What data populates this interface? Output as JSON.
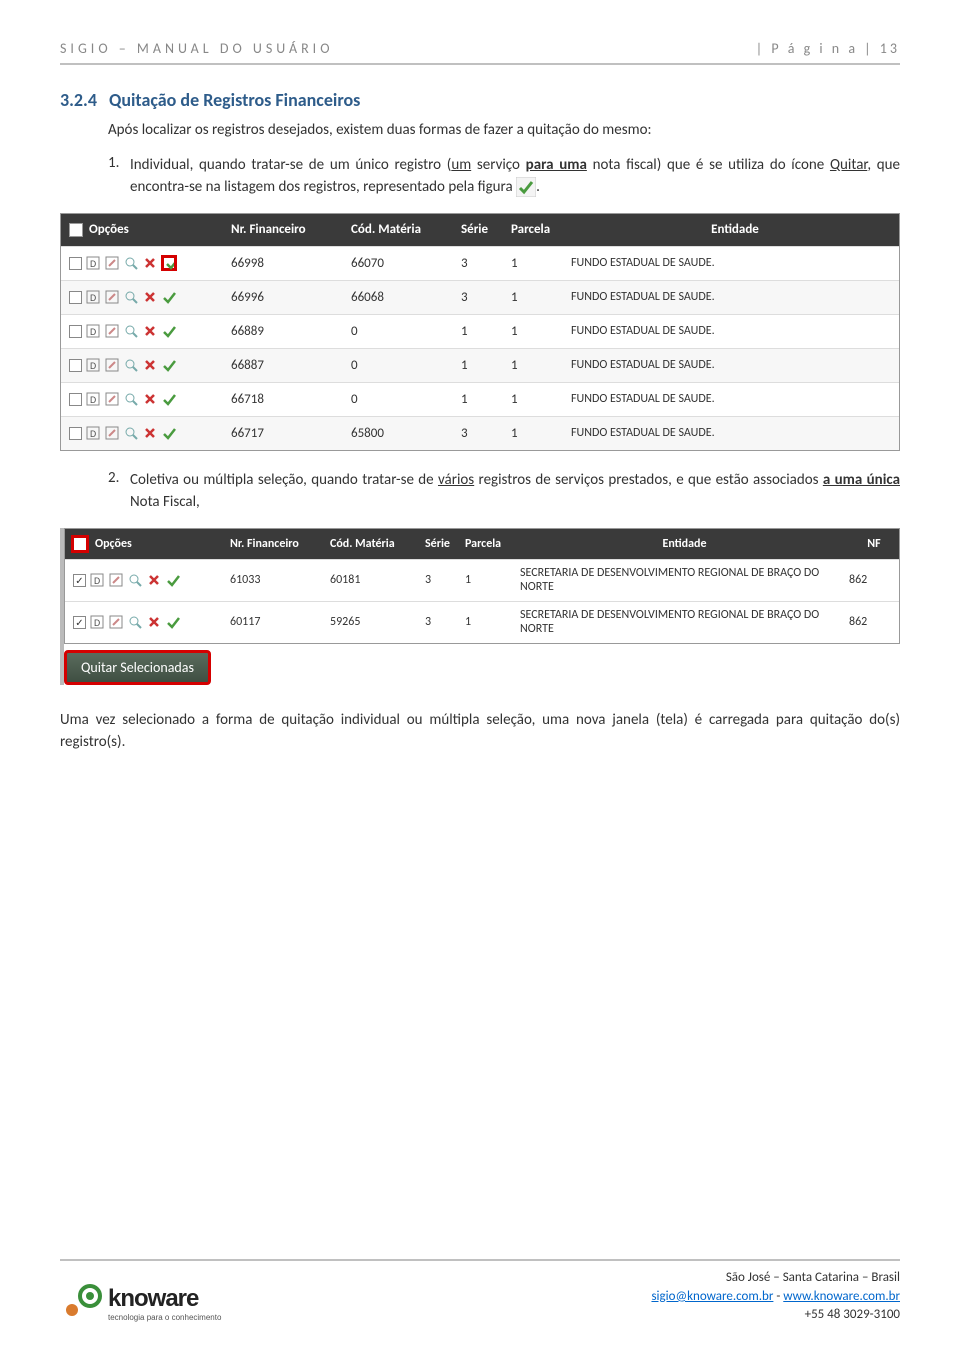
{
  "header": {
    "left": "SIGIO – MANUAL DO USUÁRIO",
    "right": "| P á g i n a  | 13"
  },
  "section": {
    "number": "3.2.4",
    "title": "Quitação de Registros Financeiros",
    "intro": "Após localizar os registros desejados, existem duas formas de fazer a quitação do mesmo:",
    "item1_pre": "Individual, quando tratar-se de um único registro (",
    "item1_u1": "um",
    "item1_mid1": " serviço ",
    "item1_bu1": "para uma",
    "item1_mid2": " nota fiscal) que é se utiliza do ícone ",
    "item1_u2": "Quitar",
    "item1_mid3": ", que encontra-se na listagem dos registros, representado pela figura ",
    "item1_end": ".",
    "item2_pre": "Coletiva ou múltipla seleção, quando tratar-se de ",
    "item2_u1": "vários",
    "item2_mid1": " registros de serviços prestados, e que estão associados ",
    "item2_bu1": "a uma única",
    "item2_mid2": " Nota Fiscal,",
    "conclusion": "Uma vez selecionado a forma de quitação individual ou múltipla seleção, uma nova janela (tela) é carregada para quitação do(s) registro(s)."
  },
  "table1": {
    "headers": {
      "opt": "Opções",
      "nr": "Nr. Financeiro",
      "cod": "Cód. Matéria",
      "ser": "Série",
      "par": "Parcela",
      "ent": "Entidade"
    },
    "rows": [
      {
        "nr": "66998",
        "cod": "66070",
        "ser": "3",
        "par": "1",
        "ent": "FUNDO ESTADUAL DE SAUDE.",
        "hl": true
      },
      {
        "nr": "66996",
        "cod": "66068",
        "ser": "3",
        "par": "1",
        "ent": "FUNDO ESTADUAL DE SAUDE."
      },
      {
        "nr": "66889",
        "cod": "0",
        "ser": "1",
        "par": "1",
        "ent": "FUNDO ESTADUAL DE SAUDE."
      },
      {
        "nr": "66887",
        "cod": "0",
        "ser": "1",
        "par": "1",
        "ent": "FUNDO ESTADUAL DE SAUDE."
      },
      {
        "nr": "66718",
        "cod": "0",
        "ser": "1",
        "par": "1",
        "ent": "FUNDO ESTADUAL DE SAUDE."
      },
      {
        "nr": "66717",
        "cod": "65800",
        "ser": "3",
        "par": "1",
        "ent": "FUNDO ESTADUAL DE SAUDE."
      }
    ]
  },
  "table2": {
    "headers": {
      "opt": "Opções",
      "nr": "Nr. Financeiro",
      "cod": "Cód. Matéria",
      "ser": "Série",
      "par": "Parcela",
      "ent": "Entidade",
      "nf": "NF"
    },
    "rows": [
      {
        "nr": "61033",
        "cod": "60181",
        "ser": "3",
        "par": "1",
        "ent": "SECRETARIA DE DESENVOLVIMENTO REGIONAL DE BRAÇO DO NORTE",
        "nf": "862"
      },
      {
        "nr": "60117",
        "cod": "59265",
        "ser": "3",
        "par": "1",
        "ent": "SECRETARIA DE DESENVOLVIMENTO REGIONAL DE BRAÇO DO NORTE",
        "nf": "862"
      }
    ],
    "button": "Quitar Selecionadas"
  },
  "footer": {
    "logo_name": "knoware",
    "logo_tag": "tecnologia para o conhecimento",
    "line1": "São José – Santa Catarina – Brasil",
    "email": "sigio@knoware.com.br",
    "sep": " - ",
    "url": "www.knoware.com.br",
    "phone": "+55 48 3029-3100"
  },
  "colors": {
    "heading": "#2e5c8a",
    "line": "#c0c0c0",
    "tbl_hdr": "#3a3a3a",
    "highlight": "#d40000",
    "btn_bg": "#4a5a4d"
  }
}
